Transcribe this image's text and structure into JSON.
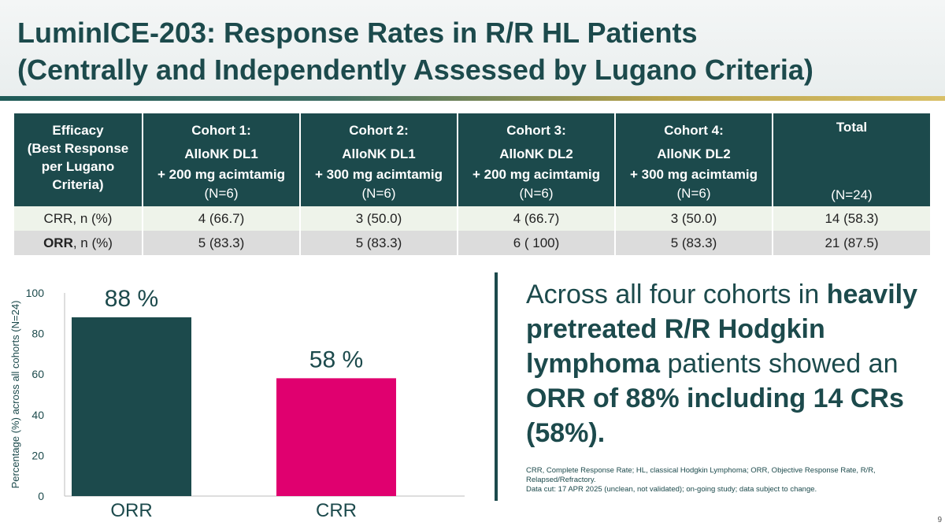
{
  "slide": {
    "title_line1": "LuminICE-203: Response Rates in R/R HL Patients",
    "title_line2": "(Centrally and Independently Assessed by Lugano Criteria)",
    "page_number": "9"
  },
  "table": {
    "header": {
      "col0": [
        "Efficacy",
        "(Best Response",
        "per Lugano",
        "Criteria)"
      ],
      "cohorts": [
        {
          "l1": "Cohort 1:",
          "l2": "AlloNK DL1",
          "l3": "+ 200 mg acimtamig",
          "n": "(N=6)"
        },
        {
          "l1": "Cohort 2:",
          "l2": "AlloNK DL1",
          "l3": "+ 300 mg acimtamig",
          "n": "(N=6)"
        },
        {
          "l1": "Cohort 3:",
          "l2": "AlloNK DL2",
          "l3": "+ 200 mg acimtamig",
          "n": "(N=6)"
        },
        {
          "l1": "Cohort 4:",
          "l2": "AlloNK DL2",
          "l3": "+ 300 mg acimtamig",
          "n": "(N=6)"
        }
      ],
      "total": {
        "label": "Total",
        "n": "(N=24)"
      }
    },
    "rows": [
      {
        "bold": "",
        "rest": "CRR, n (%)",
        "cells": [
          "4 (66.7)",
          "3 (50.0)",
          "4 (66.7)",
          "3 (50.0)",
          "14 (58.3)"
        ]
      },
      {
        "bold": "ORR",
        "rest": ", n (%)",
        "cells": [
          "5 (83.3)",
          "5 (83.3)",
          "6 ( 100)",
          "5 (83.3)",
          "21 (87.5)"
        ]
      }
    ]
  },
  "chart_data": {
    "type": "bar",
    "categories": [
      "ORR",
      "CRR"
    ],
    "values": [
      88,
      58
    ],
    "data_labels": [
      "88 %",
      "58 %"
    ],
    "bar_colors": [
      "#1c4a4c",
      "#e0006f"
    ],
    "ylabel": "Percentage (%) across all cohorts (N=24)",
    "ylim": [
      0,
      100
    ],
    "yticks": [
      0,
      20,
      40,
      60,
      80,
      100
    ],
    "grid": false
  },
  "message": {
    "p1": "Across all four cohorts in ",
    "b1": "heavily pretreated R/R Hodgkin lymphoma",
    "p2": " patients showed an ",
    "b2": "ORR of 88% including 14 CRs (58%)."
  },
  "footnote": {
    "line1": "CRR, Complete Response Rate; HL, classical Hodgkin Lymphoma; ORR, Objective Response Rate, R/R, Relapsed/Refractory.",
    "line2": "Data cut: 17 APR 2025 (unclean, not validated); on-going study; data subject to change."
  },
  "colors": {
    "primary": "#1c4a4c",
    "accent": "#e0006f",
    "row_light": "#eef3ea",
    "row_grey": "#dcdcdc"
  }
}
